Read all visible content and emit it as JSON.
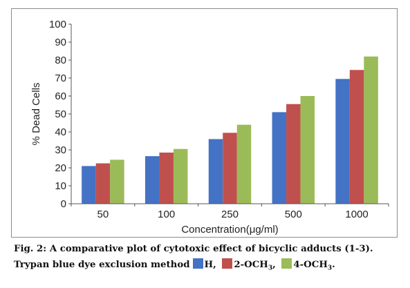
{
  "chart_data": {
    "type": "bar",
    "categories": [
      "50",
      "100",
      "250",
      "500",
      "1000"
    ],
    "series": [
      {
        "name": "H",
        "values": [
          21,
          26.5,
          36,
          51,
          69.5
        ],
        "color": "#4472c4"
      },
      {
        "name": "2-OCH3",
        "values": [
          22.5,
          28.5,
          39.5,
          55.5,
          74.5
        ],
        "color": "#c0504d"
      },
      {
        "name": "4-OCH3",
        "values": [
          24.5,
          30.5,
          44,
          60,
          82
        ],
        "color": "#9bbb59"
      }
    ],
    "title": "",
    "xlabel": "Concentration(μg/ml)",
    "ylabel": "% Dead Cells",
    "ylim": [
      0,
      100
    ],
    "yticks": [
      "0",
      "10",
      "20",
      "30",
      "40",
      "50",
      "60",
      "70",
      "80",
      "90",
      "100"
    ],
    "grid": false,
    "legend": "caption"
  },
  "caption": {
    "line1": "Fig. 2: A comparative plot of cytotoxic effect of bicyclic adducts (1-3).",
    "line2_text": "Trypan blue dye exclusion method",
    "legend_items": [
      {
        "label": "H,",
        "color": "#4472c4",
        "icon": "blue-square"
      },
      {
        "label": "2-OCH",
        "sub": "3",
        "tail": ",",
        "color": "#c0504d",
        "icon": "red-square"
      },
      {
        "label": "4-OCH",
        "sub": "3",
        "tail": ".",
        "color": "#9bbb59",
        "icon": "green-square"
      }
    ]
  }
}
